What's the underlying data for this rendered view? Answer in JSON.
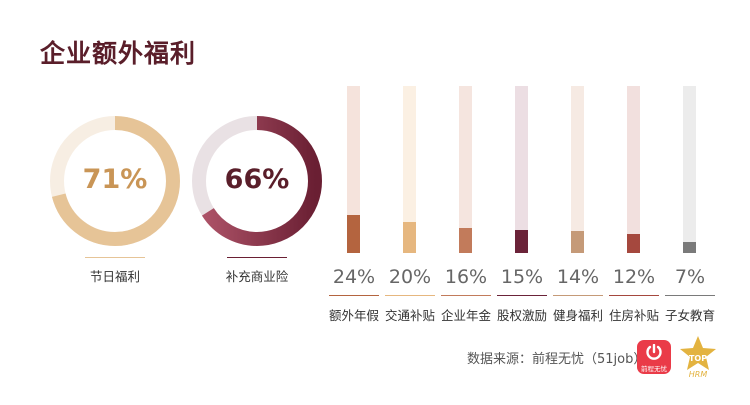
{
  "title": "企业额外福利",
  "chart_data": [
    {
      "type": "pie",
      "style": "donut",
      "label": "节日福利",
      "value": 71,
      "value_text": "71%",
      "color": "#e6c497",
      "track_color": "#f7eee3",
      "text_color": "#c99556"
    },
    {
      "type": "pie",
      "style": "donut",
      "label": "补充商业险",
      "value": 66,
      "value_text": "66%",
      "color": "#6a1f33",
      "color_start": "#b0556a",
      "track_color": "#e9e1e4",
      "text_color": "#5a1e2a"
    },
    {
      "type": "bar",
      "categories": [
        "额外年假",
        "交通补贴",
        "企业年金",
        "股权激励",
        "健身福利",
        "住房补贴",
        "子女教育"
      ],
      "values": [
        24,
        20,
        16,
        15,
        14,
        12,
        7
      ],
      "labels": [
        "24%",
        "20%",
        "16%",
        "15%",
        "14%",
        "12%",
        "7%"
      ],
      "ylim": [
        0,
        100
      ],
      "colors": [
        "#b4643f",
        "#e6b77f",
        "#c27b5b",
        "#6b2339",
        "#c59a78",
        "#a5483e",
        "#7a7a7a"
      ],
      "track_colors": [
        "#f5e3dc",
        "#fbf0e3",
        "#f5e5df",
        "#ecdee3",
        "#f6eae3",
        "#f2e0de",
        "#ececec"
      ]
    }
  ],
  "source": "数据来源：前程无忧（51job）",
  "logos": {
    "app_text": "前程无忧",
    "app_color": "#ea3b48",
    "badge_text_top": "TOP",
    "badge_text_bottom": "HRM",
    "badge_color": "#e3b340"
  }
}
